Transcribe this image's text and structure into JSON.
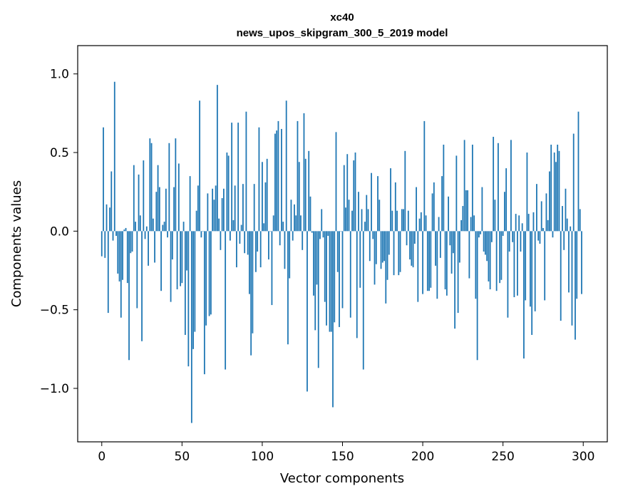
{
  "chart_data": {
    "type": "bar",
    "title": "xc40",
    "subtitle": "news_upos_skipgram_300_5_2019 model",
    "xlabel": "Vector components",
    "ylabel": "Components values",
    "xlim": [
      -15,
      315
    ],
    "ylim": [
      -1.34,
      1.18
    ],
    "xticks": [
      0,
      50,
      100,
      150,
      200,
      250,
      300
    ],
    "xtick_labels": [
      "0",
      "50",
      "100",
      "150",
      "200",
      "250",
      "300"
    ],
    "yticks": [
      -1.0,
      -0.5,
      0.0,
      0.5,
      1.0
    ],
    "ytick_labels": [
      "−1.0",
      "−0.5",
      "0.0",
      "0.5",
      "1.0"
    ],
    "grid": false,
    "color": "#1f77b4",
    "categories_range": [
      0,
      299
    ],
    "values": [
      -0.16,
      0.66,
      -0.17,
      0.17,
      -0.52,
      0.15,
      0.38,
      -0.06,
      0.95,
      -0.03,
      -0.27,
      -0.32,
      -0.55,
      -0.31,
      0.01,
      0.02,
      -0.33,
      -0.82,
      -0.14,
      -0.13,
      0.42,
      0.06,
      -0.49,
      0.36,
      0.1,
      -0.7,
      0.45,
      -0.05,
      0.03,
      -0.22,
      0.59,
      0.56,
      0.08,
      -0.2,
      0.25,
      0.42,
      0.28,
      -0.38,
      0.04,
      0.06,
      0.27,
      -0.04,
      0.56,
      -0.45,
      -0.18,
      0.28,
      0.59,
      -0.37,
      0.43,
      -0.35,
      -0.33,
      0.06,
      -0.66,
      -0.25,
      -0.86,
      0.35,
      -1.22,
      -0.75,
      -0.64,
      0.13,
      0.29,
      0.83,
      -0.04,
      0.0,
      -0.91,
      -0.6,
      0.24,
      -0.54,
      -0.53,
      0.27,
      0.2,
      0.29,
      0.93,
      0.08,
      -0.12,
      0.21,
      0.27,
      -0.88,
      0.5,
      0.48,
      -0.06,
      0.69,
      0.07,
      0.29,
      -0.23,
      0.69,
      -0.08,
      0.04,
      0.3,
      -0.14,
      0.76,
      -0.15,
      -0.4,
      -0.79,
      -0.65,
      0.3,
      -0.26,
      -0.13,
      0.66,
      -0.23,
      0.44,
      0.05,
      0.31,
      0.46,
      -0.18,
      0.0,
      -0.47,
      0.1,
      0.62,
      0.64,
      0.7,
      -0.09,
      0.65,
      0.06,
      -0.24,
      0.83,
      -0.72,
      -0.3,
      0.2,
      -0.06,
      0.17,
      0.1,
      0.7,
      0.44,
      0.1,
      -0.12,
      0.75,
      0.46,
      -1.02,
      0.51,
      0.22,
      -0.01,
      -0.41,
      -0.63,
      -0.34,
      -0.87,
      -0.05,
      0.14,
      -0.04,
      -0.45,
      -0.6,
      -0.03,
      -0.64,
      -0.64,
      -1.12,
      -0.58,
      0.63,
      -0.26,
      -0.61,
      0.0,
      -0.49,
      0.42,
      0.15,
      0.49,
      0.2,
      -0.55,
      0.13,
      0.45,
      0.5,
      -0.68,
      0.25,
      -0.36,
      0.14,
      -0.88,
      0.06,
      0.23,
      0.14,
      -0.19,
      0.37,
      -0.05,
      -0.34,
      -0.21,
      0.35,
      0.2,
      -0.24,
      -0.2,
      -0.19,
      -0.46,
      -0.31,
      -0.15,
      0.4,
      0.13,
      -0.28,
      0.31,
      0.13,
      -0.28,
      -0.26,
      0.14,
      0.14,
      0.51,
      -0.09,
      0.13,
      -0.18,
      -0.22,
      -0.23,
      -0.08,
      0.28,
      -0.45,
      0.08,
      0.12,
      -0.4,
      0.7,
      0.1,
      -0.38,
      -0.38,
      -0.36,
      0.24,
      0.31,
      -0.22,
      -0.43,
      0.09,
      -0.17,
      0.35,
      0.55,
      -0.37,
      -0.41,
      0.22,
      -0.09,
      -0.27,
      -0.14,
      -0.62,
      0.48,
      -0.52,
      -0.2,
      0.07,
      0.16,
      0.58,
      0.26,
      0.26,
      -0.3,
      0.09,
      0.55,
      0.1,
      -0.43,
      -0.82,
      -0.04,
      -0.02,
      0.28,
      -0.13,
      -0.15,
      -0.19,
      -0.32,
      -0.37,
      -0.07,
      0.6,
      0.2,
      -0.38,
      0.56,
      -0.33,
      -0.31,
      -0.03,
      0.25,
      0.4,
      -0.55,
      -0.13,
      0.58,
      -0.07,
      -0.42,
      0.11,
      -0.41,
      0.1,
      -0.13,
      0.05,
      -0.81,
      -0.44,
      0.5,
      0.11,
      -0.48,
      -0.66,
      0.12,
      -0.51,
      0.3,
      -0.06,
      -0.08,
      0.19,
      0.02,
      -0.44,
      0.24,
      0.07,
      0.38,
      0.55,
      -0.04,
      0.5,
      0.44,
      0.55,
      0.51,
      -0.57,
      0.16,
      -0.12,
      0.27,
      0.08,
      -0.39,
      0.03,
      -0.6,
      0.62,
      -0.69,
      -0.43,
      0.76,
      0.14,
      -0.4
    ]
  }
}
